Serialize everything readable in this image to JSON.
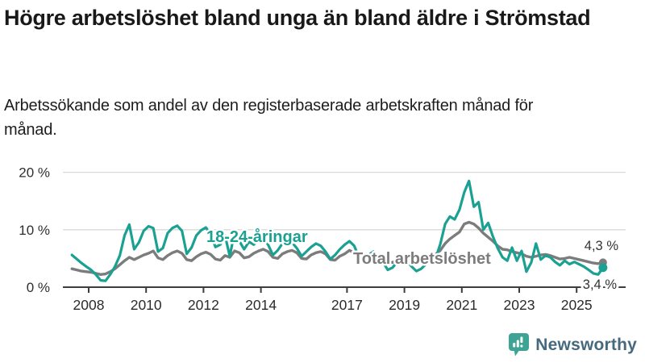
{
  "header": {
    "title": "Högre arbetslöshet bland unga än bland äldre i Strömstad",
    "subtitle": "Arbetssökande som andel av den registerbaserade arbetskraften månad för månad."
  },
  "branding": {
    "logo_text": "Newsworthy",
    "logo_icon": "newsworthy-chart-bubble-icon",
    "icon_color": "#3da394",
    "text_color": "#47697d"
  },
  "chart_data": {
    "type": "line",
    "title": "Högre arbetslöshet bland unga än bland äldre i Strömstad",
    "subtitle": "Arbetssökande som andel av den registerbaserade arbetskraften månad för månad.",
    "unit": "%",
    "grid": "horizontal-gridlines",
    "legend": "inline-series-labels",
    "x_axis": {
      "tick_years": [
        2008,
        2010,
        2012,
        2014,
        2017,
        2019,
        2021,
        2023,
        2025
      ],
      "tick_labels": [
        "2008",
        "2010",
        "2012",
        "2014",
        "2017",
        "2019",
        "2021",
        "2023",
        "2025"
      ],
      "range": [
        2007.35,
        2026.2
      ]
    },
    "y_axis": {
      "ticks_pct": [
        0,
        10,
        20
      ],
      "tick_labels": [
        "0 %",
        "10 %",
        "20 %"
      ],
      "range": [
        0,
        21
      ]
    },
    "series": [
      {
        "name": "Total arbetslöshet",
        "color": "#7c7c7c",
        "end_label": "4,3 %",
        "end_value": 4.3,
        "start_year": 2007.417,
        "step_years": 0.16667,
        "values": [
          3.2,
          3.0,
          2.8,
          2.7,
          2.6,
          2.4,
          2.2,
          2.3,
          2.7,
          3.2,
          3.9,
          4.6,
          5.2,
          4.8,
          5.2,
          5.6,
          5.9,
          6.3,
          5.1,
          4.8,
          5.5,
          6.0,
          6.3,
          5.9,
          4.8,
          4.6,
          5.3,
          5.8,
          6.1,
          5.7,
          4.9,
          4.7,
          5.5,
          5.2,
          6.3,
          6.0,
          5.1,
          5.3,
          5.9,
          6.3,
          6.6,
          6.2,
          5.2,
          5.0,
          5.8,
          6.2,
          6.4,
          6.0,
          5.0,
          4.9,
          5.6,
          6.0,
          6.2,
          5.8,
          4.8,
          4.7,
          5.4,
          5.8,
          6.4,
          6.0,
          5.0,
          4.8,
          5.2,
          5.6,
          5.4,
          5.0,
          4.4,
          4.3,
          4.8,
          5.1,
          5.2,
          4.8,
          4.3,
          4.4,
          4.9,
          5.3,
          5.7,
          6.4,
          7.6,
          8.4,
          9.0,
          9.6,
          11.0,
          11.3,
          11.0,
          10.3,
          9.4,
          8.7,
          8.0,
          7.2,
          6.6,
          6.5,
          6.2,
          6.0,
          5.8,
          5.4,
          5.2,
          5.4,
          5.6,
          5.7,
          5.5,
          5.2,
          4.9,
          5.0,
          5.2,
          5.0,
          4.8,
          4.6,
          4.4,
          4.2,
          4.1,
          4.3
        ]
      },
      {
        "name": "18-24-åringar",
        "color": "#1aa192",
        "end_label": "3,4 %",
        "end_value": 3.4,
        "start_year": 2007.417,
        "step_years": 0.16667,
        "values": [
          5.6,
          4.9,
          4.2,
          3.6,
          3.0,
          2.2,
          1.2,
          1.1,
          2.2,
          3.6,
          5.5,
          9.0,
          10.9,
          6.6,
          7.8,
          9.8,
          10.6,
          10.3,
          6.2,
          6.8,
          9.4,
          10.3,
          10.7,
          9.8,
          5.8,
          6.9,
          9.0,
          9.9,
          10.4,
          9.2,
          7.0,
          7.4,
          9.0,
          5.4,
          9.6,
          8.0,
          6.6,
          7.9,
          7.4,
          8.3,
          8.6,
          7.4,
          5.6,
          6.4,
          7.6,
          8.2,
          7.8,
          6.8,
          5.4,
          6.2,
          7.0,
          7.6,
          7.2,
          6.2,
          4.9,
          5.6,
          6.6,
          7.4,
          8.0,
          7.2,
          5.2,
          4.6,
          5.6,
          6.2,
          5.4,
          4.4,
          3.0,
          3.4,
          4.4,
          5.0,
          4.6,
          3.6,
          2.8,
          3.2,
          4.0,
          4.4,
          5.0,
          7.5,
          11.0,
          12.3,
          11.8,
          13.5,
          16.5,
          18.5,
          14.0,
          14.8,
          10.0,
          11.2,
          8.8,
          6.8,
          5.2,
          4.6,
          6.9,
          4.6,
          6.3,
          2.7,
          4.3,
          7.6,
          4.8,
          5.5,
          5.2,
          4.4,
          3.8,
          4.6,
          4.0,
          4.4,
          4.0,
          3.6,
          3.0,
          2.4,
          2.2,
          3.4
        ]
      }
    ]
  }
}
